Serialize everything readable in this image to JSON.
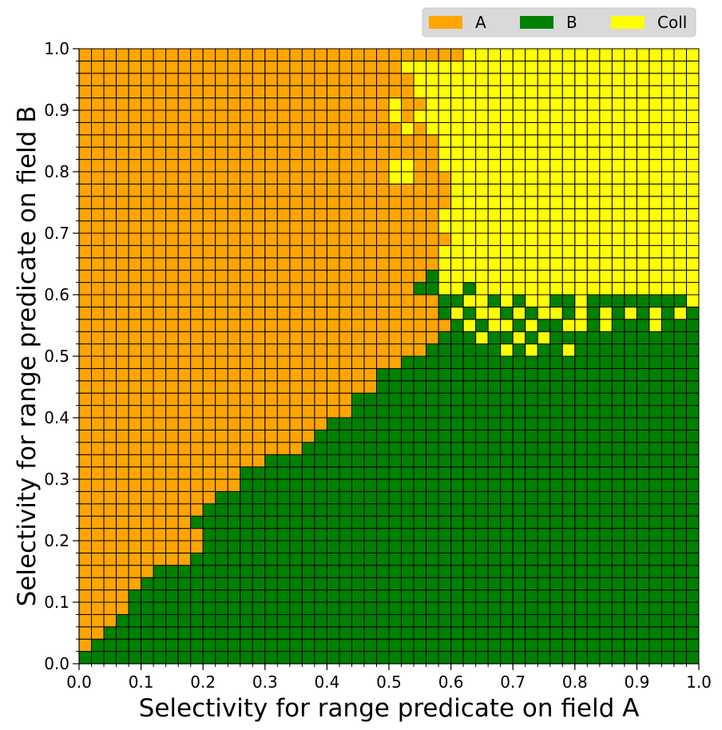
{
  "chart_data": {
    "type": "heatmap",
    "title": "",
    "xlabel": "Selectivity for range predicate on field A",
    "ylabel": "Selectivity for range predicate on field B",
    "xlim": [
      0.0,
      1.0
    ],
    "ylim": [
      0.0,
      1.0
    ],
    "xticks": [
      "0.0",
      "0.1",
      "0.2",
      "0.3",
      "0.4",
      "0.5",
      "0.6",
      "0.7",
      "0.8",
      "0.9",
      "1.0"
    ],
    "yticks": [
      "0.0",
      "0.1",
      "0.2",
      "0.3",
      "0.4",
      "0.5",
      "0.6",
      "0.7",
      "0.8",
      "0.9",
      "1.0"
    ],
    "grid_cells": [
      50,
      50
    ],
    "cell_size": 0.02,
    "legend_position": "top-right",
    "categories": [
      {
        "key": "A",
        "label": "A",
        "color": "#FFA500"
      },
      {
        "key": "B",
        "label": "B",
        "color": "#008000"
      },
      {
        "key": "C",
        "label": "Coll",
        "color": "#FFFF00"
      }
    ],
    "row_order": "bottom-to-top; each row string lists 50 cells from x=0.0 to x=1.0",
    "rows": [
      "BBBBBBBBBBBBBBBBBBBBBBBBBBBBBBBBBBBBBBBBBBBBBBBBBB",
      "ABBBBBBBBBBBBBBBBBBBBBBBBBBBBBBBBBBBBBBBBBBBBBBBBB",
      "AABBBBBBBBBBBBBBBBBBBBBBBBBBBBBBBBBBBBBBBBBBBBBBBB",
      "AAABBBBBBBBBBBBBBBBBBBBBBBBBBBBBBBBBBBBBBBBBBBBBBB",
      "AAAABBBBBBBBBBBBBBBBBBBBBBBBBBBBBBBBBBBBBBBBBBBBBB",
      "AAAABBBBBBBBBBBBBBBBBBBBBBBBBBBBBBBBBBBBBBBBBBBBBB",
      "AAAAABBBBBBBBBBBBBBBBBBBBBBBBBBBBBBBBBBBBBBBBBBBBB",
      "AAAAAABBBBBBBBBBBBBBBBBBBBBBBBBBBBBBBBBBBBBBBBBBBB",
      "AAAAAAAAABBBBBBBBBBBBBBBBBBBBBBBBBBBBBBBBBBBBBBBBB",
      "AAAAAAAAAABBBBBBBBBBBBBBBBBBBBBBBBBBBBBBBBBBBBBBBB",
      "AAAAAAAAAABBBBBBBBBBBBBBBBBBBBBBBBBBBBBBBBBBBBBBBB",
      "AAAAAAAAABBBBBBBBBBBBBBBBBBBBBBBBBBBBBBBBBBBBBBBBB",
      "AAAAAAAAAABBBBBBBBBBBBBBBBBBBBBBBBBBBBBBBBBBBBBBBB",
      "AAAAAAAAAAABBBBBBBBBBBBBBBBBBBBBBBBBBBBBBBBBBBBBBB",
      "AAAAAAAAAAAAABBBBBBBBBBBBBBBBBBBBBBBBBBBBBBBBBBBBB",
      "AAAAAAAAAAAAABBBBBBBBBBBBBBBBBBBBBBBBBBBBBBBBBBBBB",
      "AAAAAAAAAAAAAAABBBBBBBBBBBBBBBBBBBBBBBBBBBBBBBBBBB",
      "AAAAAAAAAAAAAAAAAABBBBBBBBBBBBBBBBBBBBBBBBBBBBBBBB",
      "AAAAAAAAAAAAAAAAAAABBBBBBBBBBBBBBBBBBBBBBBBBBBBBBB",
      "AAAAAAAAAAAAAAAAAAAABBBBBBBBBBBBBBBBBBBBBBBBBBBBBB",
      "AAAAAAAAAAAAAAAAAAAAAABBBBBBBBBBBBBBBBBBBBBBBBBBBB",
      "AAAAAAAAAAAAAAAAAAAAAABBBBBBBBBBBBBBBBBBBBBBBBBBBB",
      "AAAAAAAAAAAAAAAAAAAAAAAABBBBBBBBBBBBBBBBBBBBBBBBBB",
      "AAAAAAAAAAAAAAAAAAAAAAAABBBBBBBBBBBBBBBBBBBBBBBBBB",
      "AAAAAAAAAAAAAAAAAAAAAAAAAABBBBBBBBBBBBBBBBBBBBBBBB",
      "AAAAAAAAAAAAAAAAAAAAAAAAAAAABBBBBBCBCBBCBBBBBBBBBB",
      "AAAAAAAAAAAAAAAAAAAAAAAAAAAAABBBCBBCBCBBBBBBBBBBBB",
      "AAAAAAAAAAAAAAAAAAAAAAAAAAAAAABCBCCBCBBCCBCBBBCBBB",
      "AAAAAAAAAAAAAAAAAAAAAAAAAAAAABCBCCBCBCCBCBCBCBCBCB",
      "AAAAAAAAAAAAAAAAAAAAAAAAAAAAABBCCBCBCCBBCBBBBBBBBC",
      "AAAAAAAAAAAAAAAAAAAAAAAAAAABBCCBCCCCCCCCCCCCCCCCCC",
      "AAAAAAAAAAAAAAAAAAAAAAAAAAAABCCCCCCCCCCCCCCCCCCCCC",
      "AAAAAAAAAAAAAAAAAAAAAAAAAAAAACCCCCCCCCCCCCCCCCCCCC",
      "AAAAAAAAAAAAAAAAAAAAAAAAAAAAACCCCCCCCCCCCCCCCCCCCC",
      "AAAAAAAAAAAAAAAAAAAAAAAAAAAAAACCCCCCCCCCCCCCCCCCCC",
      "AAAAAAAAAAAAAAAAAAAAAAAAAAAAACCCCCCCCCCCCCCCCCCCCC",
      "AAAAAAAAAAAAAAAAAAAAAAAAAAAAACCCCCCCCCCCCCCCCCCCCC",
      "AAAAAAAAAAAAAAAAAAAAAAAAAAAAAACCCCCCCCCCCCCCCCCCCC",
      "AAAAAAAAAAAAAAAAAAAAAAAAAAAAAACCCCCCCCCCCCCCCCCCCC",
      "AAAAAAAAAAAAAAAAAAAAAAAAACCAAACCCCCCCCCCCCCCCCCCCC",
      "AAAAAAAAAAAAAAAAAAAAAAAAACCAACCCCCCCCCCCCCCCCCCCCC",
      "AAAAAAAAAAAAAAAAAAAAAAAAAAAAACCCCCCCCCCCCCCCCCCCCC",
      "AAAAAAAAAAAAAAAAAAAAAAAAAAAAACCCCCCCCCCCCCCCCCCCCC",
      "AAAAAAAAAAAAAAAAAAAAAAAAAACACCCCCCCCCCCCCCCCCCCCCC",
      "AAAAAAAAAAAAAAAAAAAAAAAAACACCCCCCCCCCCCCCCCCCCCCCC",
      "AAAAAAAAAAAAAAAAAAAAAAAAACAACCCCCCCCCCCCCCCCCCCCCC",
      "AAAAAAAAAAAAAAAAAAAAAAAAAAACCCCCCCCCCCCCCCCCCCCCCC",
      "AAAAAAAAAAAAAAAAAAAAAAAAAAACCCCCCCCCCCCCCCCCCCCCCC",
      "AAAAAAAAAAAAAAAAAAAAAAAAAACCCCCCCCCCCCCCCCCCCCCCCC",
      "AAAAAAAAAAAAAAAAAAAAAAAAAAAAAAACCCCCCCCCCCCCCCCCCC"
    ]
  }
}
